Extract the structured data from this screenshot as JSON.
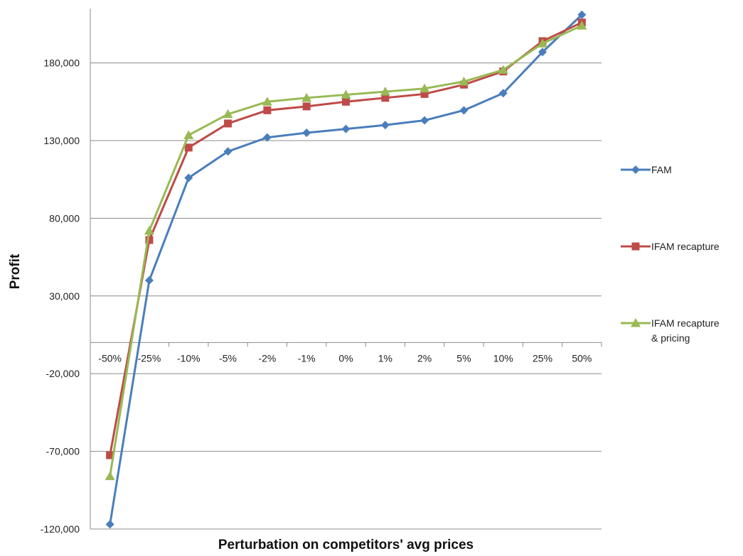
{
  "chart_data": {
    "type": "line",
    "title": "",
    "xlabel": "Perturbation on competitors' avg prices",
    "ylabel": "Profit",
    "categories": [
      "-50%",
      "-25%",
      "-10%",
      "-5%",
      "-2%",
      "-1%",
      "0%",
      "1%",
      "2%",
      "5%",
      "10%",
      "25%",
      "50%"
    ],
    "ylim": [
      -120000,
      215000
    ],
    "yticks": [
      -120000,
      -70000,
      -20000,
      30000,
      80000,
      130000,
      180000
    ],
    "ytick_labels": [
      "-120,000",
      "-70,000",
      "-20,000",
      "30,000",
      "80,000",
      "130,000",
      "180,000"
    ],
    "grid": true,
    "legend_position": "right",
    "series": [
      {
        "name": "FAM",
        "color": "#4a7ebb",
        "marker": "diamond",
        "values": [
          -117000,
          40000,
          106000,
          123000,
          132000,
          135000,
          137500,
          140000,
          143000,
          149500,
          160500,
          187000,
          211000
        ]
      },
      {
        "name": "IFAM recapture",
        "color": "#be4b48",
        "marker": "square",
        "values": [
          -72500,
          66000,
          125500,
          141000,
          149500,
          152000,
          155000,
          157500,
          160000,
          166000,
          174500,
          194000,
          206000
        ]
      },
      {
        "name": "IFAM recapture\n& pricing",
        "legend_lines": [
          "IFAM recapture",
          "& pricing"
        ],
        "color": "#98b954",
        "marker": "triangle",
        "values": [
          -86000,
          72000,
          133500,
          147000,
          155000,
          157500,
          159500,
          161500,
          163500,
          168000,
          175500,
          192500,
          204000
        ]
      }
    ]
  }
}
